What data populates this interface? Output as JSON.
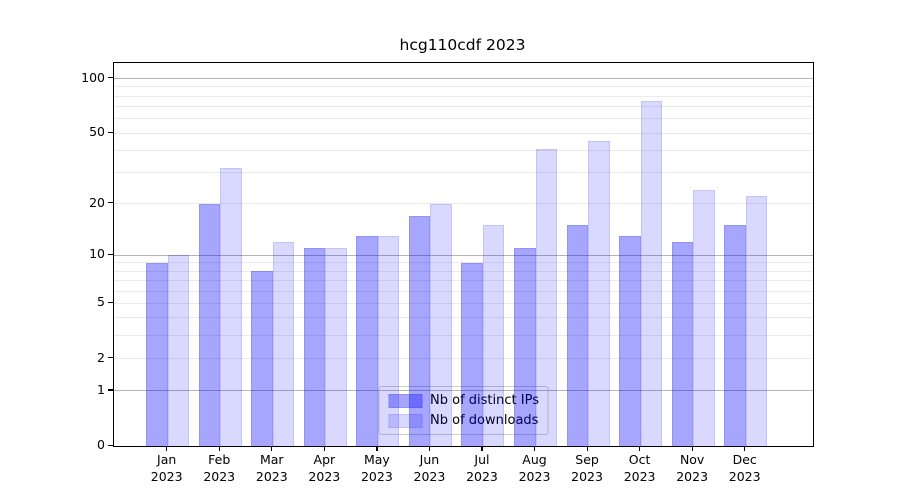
{
  "title": "hcg110cdf 2023",
  "chart_data": {
    "type": "bar",
    "title": "hcg110cdf 2023",
    "categories": [
      "Jan 2023",
      "Feb 2023",
      "Mar 2023",
      "Apr 2023",
      "May 2023",
      "Jun 2023",
      "Jul 2023",
      "Aug 2023",
      "Sep 2023",
      "Oct 2023",
      "Nov 2023",
      "Dec 2023"
    ],
    "x_tick_months": [
      "Jan",
      "Feb",
      "Mar",
      "Apr",
      "May",
      "Jun",
      "Jul",
      "Aug",
      "Sep",
      "Oct",
      "Nov",
      "Dec"
    ],
    "x_tick_year": "2023",
    "series": [
      {
        "name": "Nb of distinct IPs",
        "color": "rgba(0,0,255,0.35)",
        "edge": "rgba(40,40,200,0.15)",
        "values": [
          9,
          20,
          8,
          11,
          13,
          17,
          9,
          11,
          15,
          13,
          12,
          15
        ]
      },
      {
        "name": "Nb of downloads",
        "color": "rgba(0,0,255,0.15)",
        "edge": "rgba(40,40,200,0.12)",
        "values": [
          10,
          32,
          12,
          11,
          13,
          20,
          15,
          41,
          45,
          75,
          24,
          22
        ]
      }
    ],
    "yscale": "log1p",
    "ylabel": "",
    "xlabel": "",
    "ylim": [
      0,
      122
    ],
    "y_labeled_ticks": [
      0,
      1,
      2,
      5,
      10,
      20,
      50,
      100
    ],
    "y_major_gridlines": [
      1,
      10,
      100
    ],
    "y_minor_gridlines": [
      2,
      3,
      4,
      5,
      6,
      7,
      8,
      9,
      20,
      30,
      40,
      50,
      60,
      70,
      80,
      90
    ],
    "grid": "horizontal",
    "grid_color_major": "#b4b4b4",
    "grid_color_minor": "#eaeaea",
    "legend_position": "lower center",
    "legend": [
      "Nb of distinct IPs",
      "Nb of downloads"
    ]
  }
}
